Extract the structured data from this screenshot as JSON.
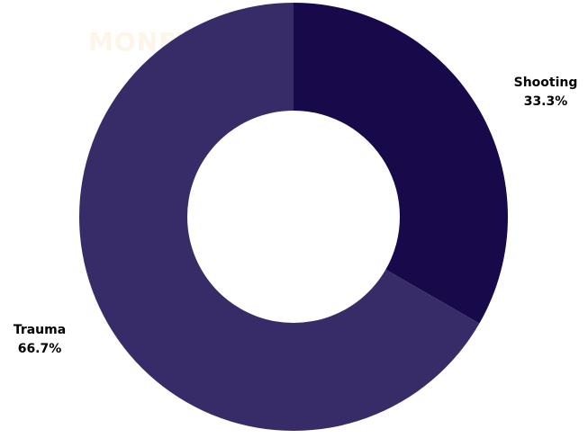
{
  "watermark": "MONEYSMART",
  "colors": {
    "shooting": "#17094a",
    "trauma": "#372c67",
    "hole": "#ffffff"
  },
  "chart_data": {
    "type": "pie",
    "slices": [
      {
        "label": "Shooting",
        "value": 33.3,
        "percent_label": "33.3%",
        "color": "#17094a"
      },
      {
        "label": "Trauma",
        "value": 66.7,
        "percent_label": "66.7%",
        "color": "#372c67"
      }
    ],
    "donut": true
  }
}
